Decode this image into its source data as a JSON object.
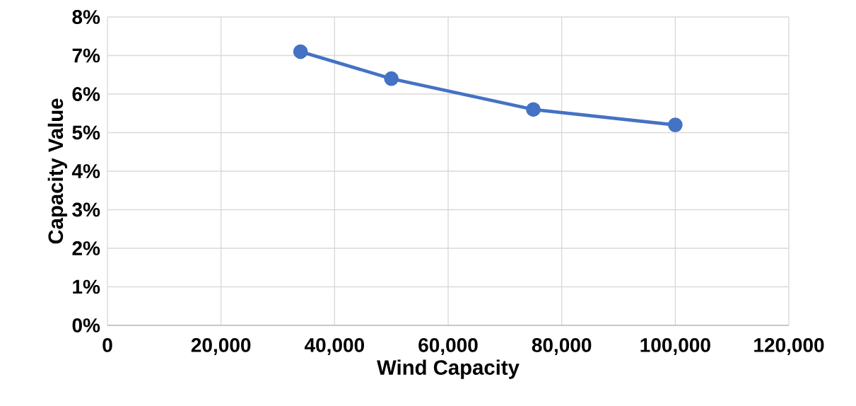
{
  "chart_data": {
    "type": "line",
    "xlabel": "Wind Capacity",
    "ylabel": "Capacity Value",
    "x": [
      34000,
      50000,
      75000,
      100000
    ],
    "series": [
      {
        "color": "#4472c4",
        "values": [
          7.1,
          6.4,
          5.6,
          5.2
        ]
      }
    ],
    "xlim": [
      0,
      120000
    ],
    "xticks": [
      0,
      {
        "value": 20000,
        "label": "20,000"
      },
      {
        "value": 40000,
        "label": "40,000"
      },
      {
        "value": 60000,
        "label": "60,000"
      },
      {
        "value": 80000,
        "label": "80,000"
      },
      {
        "value": 100000,
        "label": "100,000"
      },
      {
        "value": 120000,
        "label": "120,000"
      }
    ],
    "ylim": [
      0,
      8
    ],
    "yticks": [
      {
        "value": 0,
        "label": "0%"
      },
      {
        "value": 1,
        "label": "1%"
      },
      {
        "value": 2,
        "label": "2%"
      },
      {
        "value": 3,
        "label": "3%"
      },
      {
        "value": 4,
        "label": "4%"
      },
      {
        "value": 5,
        "label": "5%"
      },
      {
        "value": 6,
        "label": "6%"
      },
      {
        "value": 7,
        "label": "7%"
      },
      {
        "value": 8,
        "label": "8%"
      }
    ],
    "grid": true,
    "marker": "circle",
    "line_style": "solid"
  }
}
